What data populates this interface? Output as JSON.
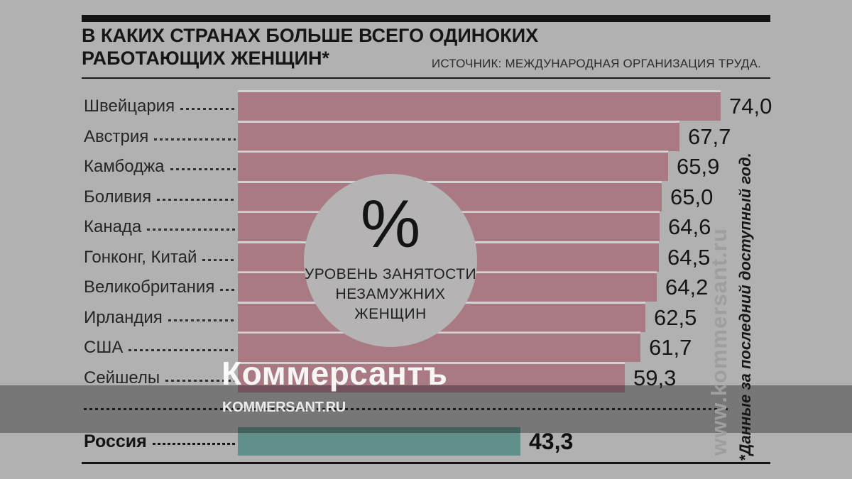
{
  "header": {
    "title_line1": "В КАКИХ СТРАНАХ БОЛЬШЕ ВСЕГО ОДИНОКИХ",
    "title_line2": "РАБОТАЮЩИХ ЖЕНЩИН*",
    "source": "ИСТОЧНИК: МЕЖДУНАРОДНАЯ ОРГАНИЗАЦИЯ ТРУДА."
  },
  "chart_data": {
    "type": "bar",
    "orientation": "horizontal",
    "title": "В каких странах больше всего одиноких работающих женщин (уровень занятости незамужних женщин, %)",
    "unit": "%",
    "categories": [
      "Швейцария",
      "Австрия",
      "Камбоджа",
      "Боливия",
      "Канада",
      "Гонконг, Китай",
      "Великобритания",
      "Ирландия",
      "США",
      "Сейшелы"
    ],
    "values": [
      74.0,
      67.7,
      65.9,
      65.0,
      64.6,
      64.5,
      64.2,
      62.5,
      61.7,
      59.3
    ],
    "display_values": [
      "74,0",
      "67,7",
      "65,9",
      "65,0",
      "64,6",
      "64,5",
      "64,2",
      "62,5",
      "61,7",
      "59,3"
    ],
    "highlight": {
      "category": "Россия",
      "value": 43.3,
      "display_value": "43,3"
    },
    "xlim": [
      0,
      74
    ],
    "grid": false,
    "legend_position": "center-circle",
    "bar_color": "#a97a84",
    "highlight_color": "#609089",
    "legend_circle": {
      "symbol": "%",
      "caption_lines": [
        "УРОВЕНЬ ЗАНЯТОСТИ",
        "НЕЗАМУЖНИХ",
        "ЖЕНЩИН"
      ]
    }
  },
  "watermarks": {
    "logo": "Коммерсантъ",
    "site": "KOMMERSANT.RU",
    "side_site": "www.kommersant.ru",
    "footnote": "*Данные за последний доступный год."
  }
}
